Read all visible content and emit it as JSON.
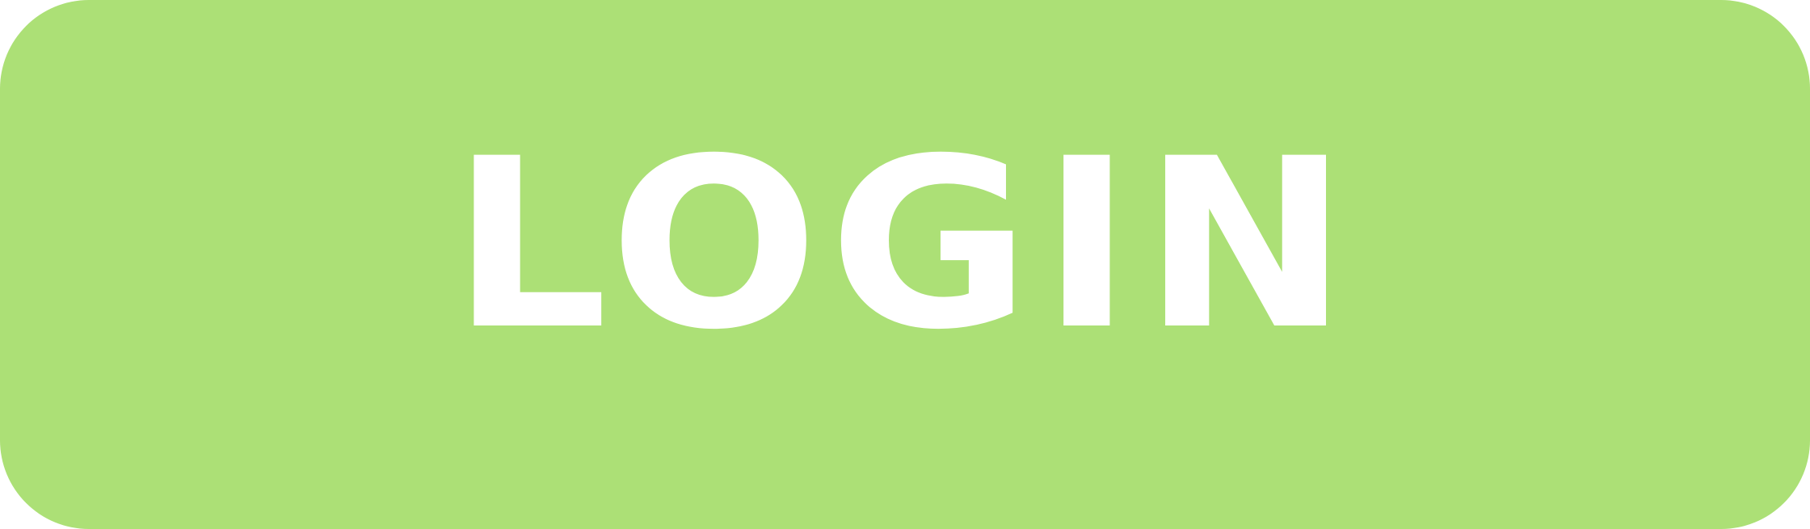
{
  "login_button": {
    "label": "LOGIN",
    "background_color": "#ace076",
    "text_color": "#ffffff"
  }
}
